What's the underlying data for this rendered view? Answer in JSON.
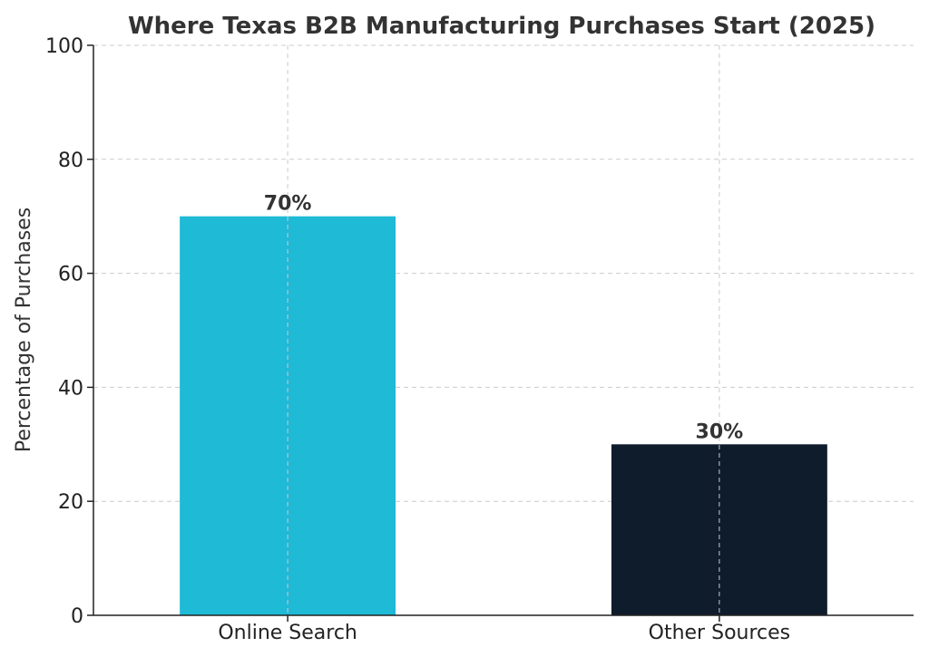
{
  "chart_data": {
    "type": "bar",
    "title": "Where Texas B2B Manufacturing Purchases Start (2025)",
    "xlabel": "",
    "ylabel": "Percentage of Purchases",
    "categories": [
      "Online Search",
      "Other Sources"
    ],
    "values": [
      70,
      30
    ],
    "value_labels": [
      "70%",
      "30%"
    ],
    "colors": [
      "#1ebad6",
      "#0f1c2b"
    ],
    "ylim": [
      0,
      100
    ],
    "yticks": [
      0,
      20,
      40,
      60,
      80,
      100
    ],
    "ytick_labels": [
      "0",
      "20",
      "40",
      "60",
      "80",
      "100"
    ],
    "grid": true,
    "legend": null
  }
}
